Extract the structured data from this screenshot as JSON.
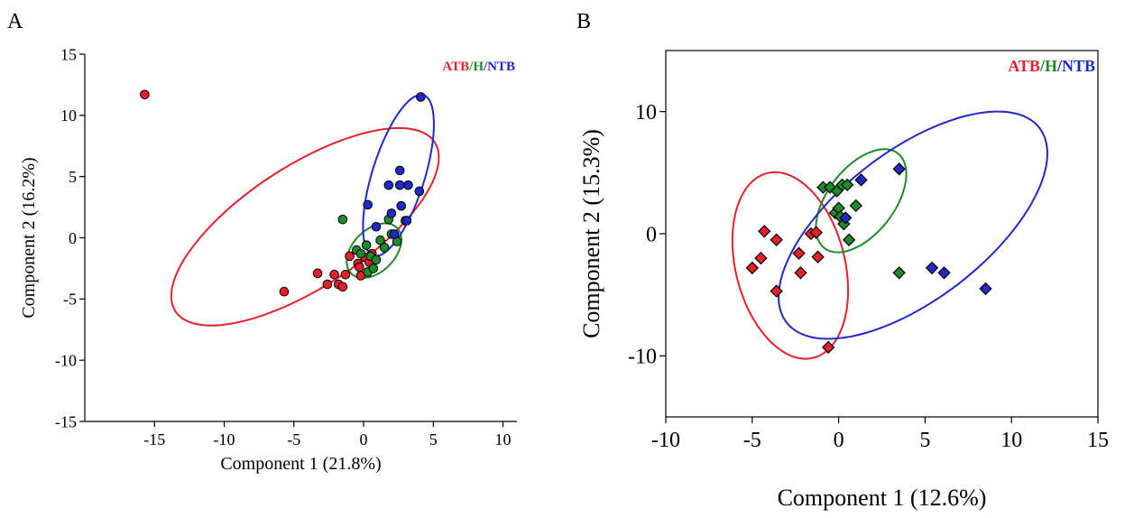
{
  "colors": {
    "ATB": "#e8202a",
    "H": "#1e8a2a",
    "NTB": "#1f28c8",
    "axis": "#000000"
  },
  "chart_data": [
    {
      "panel": "A",
      "type": "scatter",
      "marker": "circle",
      "xlabel": "Component 1 (21.8%)",
      "ylabel": "Component 2 (16.2%)",
      "xlim": [
        -20,
        11
      ],
      "ylim": [
        -15,
        15
      ],
      "xticks": [
        -15,
        -10,
        -5,
        0,
        5,
        10
      ],
      "yticks": [
        -15,
        -10,
        -5,
        0,
        5,
        10,
        15
      ],
      "legend": {
        "position": "top-right",
        "parts": [
          "ATB",
          "/",
          "H",
          "/",
          "NTB"
        ]
      },
      "series": [
        {
          "name": "ATB",
          "color": "#e8202a",
          "points": [
            [
              -15.7,
              11.7
            ],
            [
              -5.7,
              -4.4
            ],
            [
              -3.3,
              -2.9
            ],
            [
              -2.6,
              -3.8
            ],
            [
              -2.1,
              -3.0
            ],
            [
              -1.8,
              -3.8
            ],
            [
              -1.5,
              -4.0
            ],
            [
              -1.3,
              -3.0
            ],
            [
              -1.0,
              -1.5
            ],
            [
              -0.4,
              -2.1
            ],
            [
              -0.3,
              -2.4
            ],
            [
              -0.2,
              -3.1
            ],
            [
              0.1,
              -1.6
            ],
            [
              0.4,
              -2.0
            ],
            [
              0.6,
              -1.3
            ]
          ]
        },
        {
          "name": "H",
          "color": "#1e8a2a",
          "points": [
            [
              -1.5,
              1.5
            ],
            [
              -0.5,
              -1.0
            ],
            [
              -0.2,
              -1.3
            ],
            [
              0.2,
              -0.6
            ],
            [
              0.3,
              -2.8
            ],
            [
              0.5,
              -1.5
            ],
            [
              0.7,
              -2.5
            ],
            [
              0.9,
              -1.8
            ],
            [
              1.2,
              -0.2
            ],
            [
              1.5,
              -0.8
            ],
            [
              1.8,
              1.5
            ],
            [
              2.0,
              0.3
            ],
            [
              2.4,
              -0.3
            ],
            [
              3.0,
              1.4
            ]
          ]
        },
        {
          "name": "NTB",
          "color": "#1f28c8",
          "points": [
            [
              0.3,
              2.7
            ],
            [
              0.9,
              0.9
            ],
            [
              1.8,
              4.3
            ],
            [
              2.0,
              2.0
            ],
            [
              2.2,
              0.3
            ],
            [
              2.6,
              5.5
            ],
            [
              2.6,
              4.3
            ],
            [
              2.7,
              2.6
            ],
            [
              3.1,
              1.4
            ],
            [
              3.2,
              4.3
            ],
            [
              4.0,
              3.8
            ],
            [
              4.1,
              11.5
            ]
          ]
        }
      ],
      "ellipses": [
        {
          "group": "ATB",
          "color": "#e8202a",
          "cx": -4.2,
          "cy": 0.9,
          "rx": 11.6,
          "ry": 4.75,
          "angle_deg": 38
        },
        {
          "group": "H",
          "color": "#1e8a2a",
          "cx": 0.75,
          "cy": -1.05,
          "rx": 2.5,
          "ry": 1.6,
          "angle_deg": 54
        },
        {
          "group": "NTB",
          "color": "#1f28c8",
          "cx": 2.5,
          "cy": 5.1,
          "rx": 6.8,
          "ry": 1.9,
          "angle_deg": 75
        }
      ]
    },
    {
      "panel": "B",
      "type": "scatter",
      "marker": "diamond",
      "xlabel": "Component 1 (12.6%)",
      "ylabel": "Component 2 (15.3%)",
      "xlim": [
        -10,
        15
      ],
      "ylim": [
        -15,
        15
      ],
      "xticks": [
        -10,
        -5,
        0,
        5,
        10,
        15
      ],
      "yticks": [
        -10,
        0,
        10
      ],
      "legend": {
        "position": "top-right",
        "parts": [
          "ATB",
          "/",
          "H",
          "/",
          "NTB"
        ]
      },
      "series": [
        {
          "name": "ATB",
          "color": "#e8202a",
          "points": [
            [
              -5.0,
              -2.8
            ],
            [
              -4.5,
              -2.0
            ],
            [
              -4.3,
              0.2
            ],
            [
              -3.6,
              -0.5
            ],
            [
              -3.6,
              -4.7
            ],
            [
              -2.3,
              -1.6
            ],
            [
              -2.2,
              -3.2
            ],
            [
              -1.6,
              0.0
            ],
            [
              -1.3,
              0.1
            ],
            [
              -1.2,
              -1.9
            ],
            [
              -0.6,
              -9.3
            ]
          ]
        },
        {
          "name": "H",
          "color": "#1e8a2a",
          "points": [
            [
              -0.9,
              3.8
            ],
            [
              -0.5,
              3.8
            ],
            [
              -0.2,
              1.7
            ],
            [
              -0.1,
              3.5
            ],
            [
              0.0,
              2.1
            ],
            [
              0.1,
              1.4
            ],
            [
              0.2,
              4.0
            ],
            [
              0.3,
              0.8
            ],
            [
              0.5,
              4.0
            ],
            [
              0.6,
              -0.5
            ],
            [
              1.0,
              2.3
            ],
            [
              3.5,
              -3.2
            ]
          ]
        },
        {
          "name": "NTB",
          "color": "#1f28c8",
          "points": [
            [
              0.4,
              1.3
            ],
            [
              1.3,
              4.4
            ],
            [
              3.5,
              5.3
            ],
            [
              5.4,
              -2.8
            ],
            [
              6.1,
              -3.2
            ],
            [
              8.5,
              -4.5
            ]
          ]
        }
      ],
      "ellipses": [
        {
          "group": "ATB",
          "color": "#e8202a",
          "cx": -2.8,
          "cy": -2.6,
          "rx": 7.7,
          "ry": 3.2,
          "angle_deg": 98
        },
        {
          "group": "H",
          "color": "#1e8a2a",
          "cx": 1.3,
          "cy": 2.7,
          "rx": 4.5,
          "ry": 2.1,
          "angle_deg": 67
        },
        {
          "group": "NTB",
          "color": "#1f28c8",
          "cx": 4.3,
          "cy": 0.7,
          "rx": 11.0,
          "ry": 5.1,
          "angle_deg": 53
        }
      ]
    }
  ],
  "panel_labels": [
    "A",
    "B"
  ]
}
